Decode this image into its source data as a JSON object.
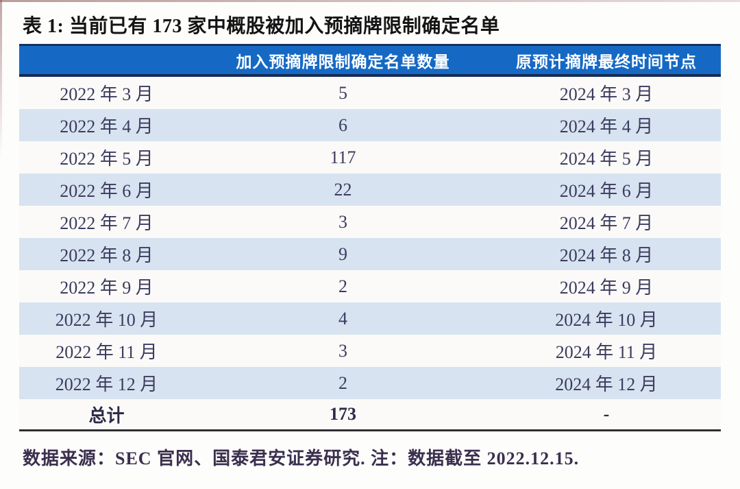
{
  "page": {
    "title": "表 1: 当前已有 173 家中概股被加入预摘牌限制确定名单",
    "footer": "数据来源：SEC 官网、国泰君安证券研究. 注：数据截至 2022.12.15."
  },
  "table": {
    "columns": {
      "month_header": "",
      "count_header": "加入预摘牌限制确定名单数量",
      "deadline_header": "原预计摘牌最终时间节点"
    },
    "rows": [
      {
        "month": "2022 年 3 月",
        "count": "5",
        "deadline": "2024 年 3 月"
      },
      {
        "month": "2022 年 4 月",
        "count": "6",
        "deadline": "2024 年 4 月"
      },
      {
        "month": "2022 年 5 月",
        "count": "117",
        "deadline": "2024 年 5 月"
      },
      {
        "month": "2022 年 6 月",
        "count": "22",
        "deadline": "2024 年 6 月"
      },
      {
        "month": "2022 年 7 月",
        "count": "3",
        "deadline": "2024 年 7 月"
      },
      {
        "month": "2022 年 8 月",
        "count": "9",
        "deadline": "2024 年 8 月"
      },
      {
        "month": "2022 年 9 月",
        "count": "2",
        "deadline": "2024 年 9 月"
      },
      {
        "month": "2022 年 10 月",
        "count": "4",
        "deadline": "2024 年 10 月"
      },
      {
        "month": "2022 年 11 月",
        "count": "3",
        "deadline": "2024 年 11 月"
      },
      {
        "month": "2022 年 12 月",
        "count": "2",
        "deadline": "2024 年 12 月"
      }
    ],
    "total": {
      "label": "总计",
      "count": "173",
      "deadline": "-"
    }
  },
  "colors": {
    "header_bg": "#1569C4",
    "header_border_top": "#16305E",
    "header_border_bottom": "#142B56",
    "row_alt": "#D7E3F0",
    "row_plain": "#FBFAF8",
    "data_text": "#3B3B5F",
    "bottom_rule": "#2E2E2E"
  }
}
